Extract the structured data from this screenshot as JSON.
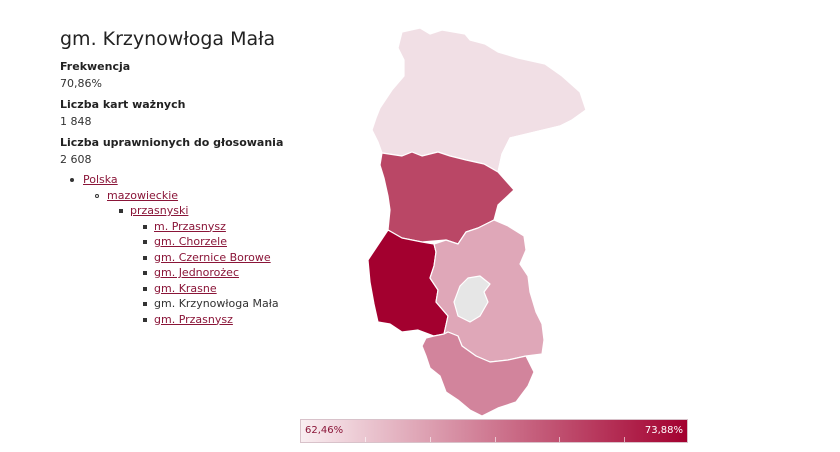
{
  "title": "gm. Krzynowłoga Mała",
  "stats": {
    "turnout_label": "Frekwencja",
    "turnout_value": "70,86%",
    "valid_cards_label": "Liczba kart ważnych",
    "valid_cards_value": "1 848",
    "eligible_label": "Liczba uprawnionych do głosowania",
    "eligible_value": "2 608"
  },
  "breadcrumb": {
    "country": "Polska",
    "voivodeship": "mazowieckie",
    "county": "przasnyski",
    "municipalities": [
      {
        "label": "m. Przasnysz",
        "link": true
      },
      {
        "label": "gm. Chorzele",
        "link": true
      },
      {
        "label": "gm. Czernice Borowe",
        "link": true
      },
      {
        "label": "gm. Jednorożec",
        "link": true
      },
      {
        "label": "gm. Krasne",
        "link": true
      },
      {
        "label": "gm. Krzynowłoga Mała",
        "link": false
      },
      {
        "label": "gm. Przasnysz",
        "link": true
      }
    ]
  },
  "map": {
    "regions": [
      {
        "name": "gm. Chorzele",
        "color": "#f1dfe5"
      },
      {
        "name": "gm. Jednorożec",
        "color": "#ffffff"
      },
      {
        "name": "gm. Krzynowłoga Mała",
        "color": "#ba4766"
      },
      {
        "name": "gm. Czernice Borowe",
        "color": "#a3002f"
      },
      {
        "name": "gm. Przasnysz",
        "color": "#dfa7b8"
      },
      {
        "name": "m. Przasnysz",
        "color": "#e6e6e6"
      },
      {
        "name": "gm. Krasne",
        "color": "#d2849c"
      }
    ]
  },
  "legend": {
    "min": "62,46%",
    "max": "73,88%",
    "color_min": "#f9eef1",
    "color_max": "#a3002f"
  }
}
